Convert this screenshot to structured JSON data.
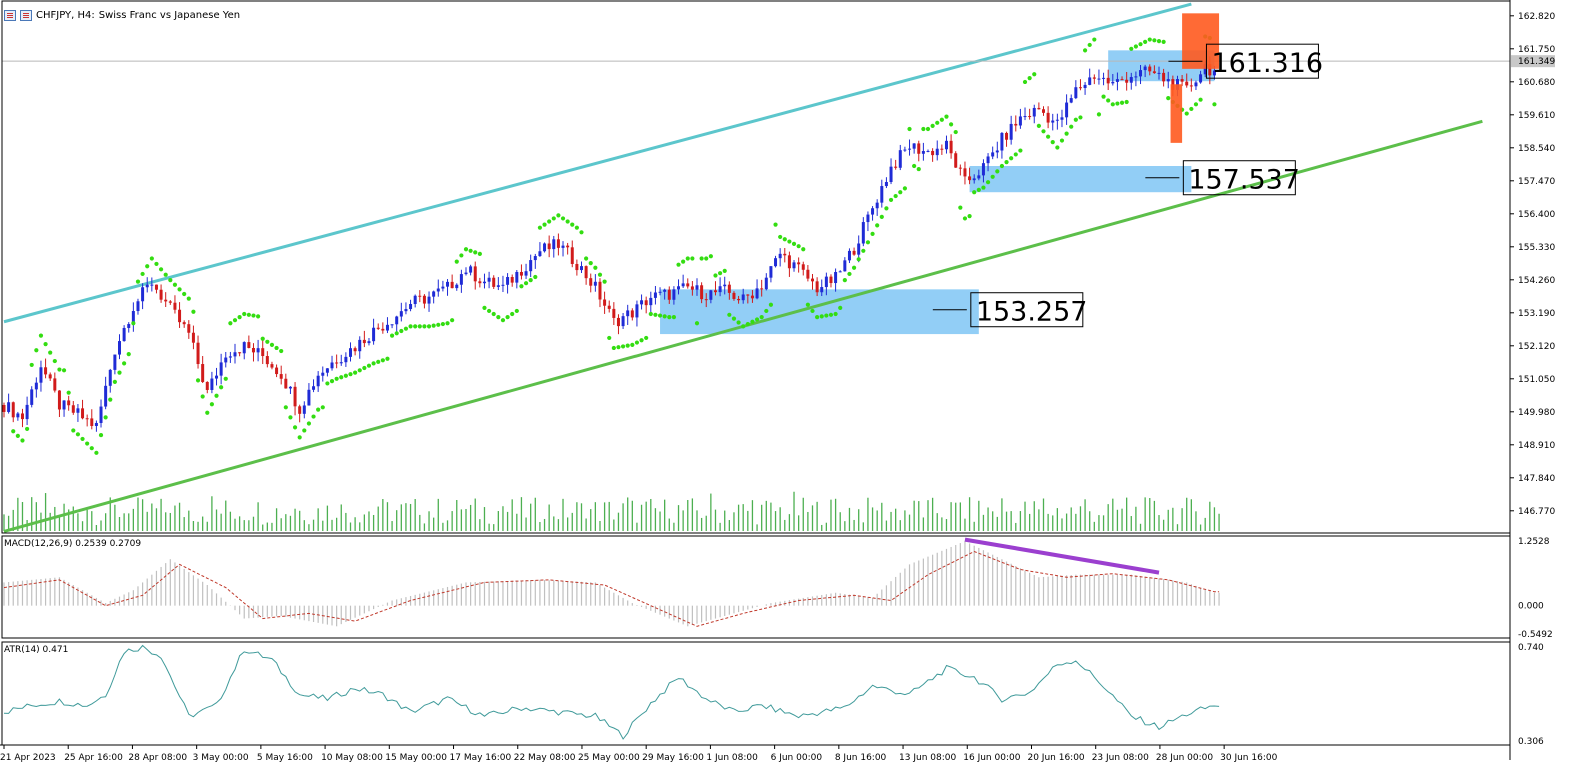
{
  "title_bar": {
    "symbol_text": "CHFJPY, H4:",
    "description": "Swiss Franc vs Japanese Yen",
    "icons": [
      "chart-window-icon",
      "chart-properties-icon"
    ]
  },
  "chart_data": [
    {
      "type": "candlestick",
      "symbol": "CHFJPY",
      "timeframe": "H4",
      "title": "CHFJPY, H4:  Swiss Franc vs Japanese Yen",
      "y_ticks": [
        162.82,
        161.75,
        160.68,
        159.61,
        158.54,
        157.47,
        156.4,
        155.33,
        154.26,
        153.19,
        152.12,
        151.05,
        149.98,
        148.91,
        147.84,
        146.77
      ],
      "y_tick_labels": [
        "162.820",
        "161.750",
        "160.680",
        "159.610",
        "158.540",
        "157.470",
        "156.400",
        "155.330",
        "154.260",
        "153.190",
        "152.120",
        "151.050",
        "149.980",
        "148.910",
        "147.840",
        "146.770"
      ],
      "ylim": [
        146.05,
        163.3
      ],
      "current_price_label": "161.349",
      "current_price": 161.349,
      "x_labels": [
        "21 Apr 2023",
        "25 Apr 16:00",
        "28 Apr 08:00",
        "3 May 00:00",
        "5 May 16:00",
        "10 May 08:00",
        "15 May 00:00",
        "17 May 16:00",
        "22 May 08:00",
        "25 May 00:00",
        "29 May 16:00",
        "1 Jun 08:00",
        "6 Jun 00:00",
        "8 Jun 16:00",
        "13 Jun 08:00",
        "16 Jun 00:00",
        "20 Jun 16:00",
        "23 Jun 08:00",
        "28 Jun 00:00",
        "30 Jun 16:00"
      ],
      "close_path": [
        [
          0,
          150.2
        ],
        [
          4,
          149.8
        ],
        [
          8,
          151.5
        ],
        [
          12,
          150.2
        ],
        [
          16,
          149.9
        ],
        [
          20,
          149.5
        ],
        [
          24,
          152.0
        ],
        [
          28,
          153.4
        ],
        [
          32,
          154.2
        ],
        [
          36,
          153.3
        ],
        [
          40,
          152.5
        ],
        [
          44,
          150.6
        ],
        [
          48,
          151.9
        ],
        [
          52,
          152.1
        ],
        [
          56,
          151.8
        ],
        [
          60,
          151.2
        ],
        [
          64,
          150.1
        ],
        [
          68,
          151.2
        ],
        [
          72,
          151.7
        ],
        [
          76,
          152.1
        ],
        [
          80,
          152.6
        ],
        [
          84,
          153.0
        ],
        [
          88,
          153.5
        ],
        [
          92,
          153.7
        ],
        [
          96,
          154.0
        ],
        [
          100,
          154.6
        ],
        [
          104,
          154.2
        ],
        [
          108,
          154.0
        ],
        [
          112,
          154.6
        ],
        [
          116,
          155.2
        ],
        [
          120,
          155.4
        ],
        [
          124,
          154.8
        ],
        [
          128,
          154.0
        ],
        [
          132,
          152.9
        ],
        [
          136,
          153.2
        ],
        [
          140,
          153.7
        ],
        [
          144,
          153.8
        ],
        [
          148,
          154.0
        ],
        [
          152,
          153.8
        ],
        [
          156,
          153.9
        ],
        [
          160,
          153.6
        ],
        [
          164,
          154.1
        ],
        [
          168,
          155.1
        ],
        [
          172,
          154.6
        ],
        [
          176,
          154.0
        ],
        [
          180,
          154.3
        ],
        [
          184,
          155.3
        ],
        [
          188,
          156.6
        ],
        [
          192,
          157.9
        ],
        [
          196,
          158.6
        ],
        [
          200,
          158.4
        ],
        [
          204,
          158.6
        ],
        [
          208,
          157.4
        ],
        [
          212,
          157.9
        ],
        [
          216,
          158.8
        ],
        [
          220,
          159.5
        ],
        [
          224,
          159.8
        ],
        [
          228,
          159.3
        ],
        [
          232,
          160.4
        ],
        [
          236,
          160.9
        ],
        [
          240,
          160.6
        ],
        [
          244,
          160.9
        ],
        [
          248,
          161.0
        ],
        [
          252,
          160.7
        ],
        [
          256,
          160.4
        ],
        [
          260,
          161.2
        ],
        [
          262,
          161.0
        ]
      ],
      "bars_total": 265,
      "channel_lines": [
        {
          "name": "upper-channel",
          "color": "#5cc6cc",
          "points": [
            [
              0,
              152.9
            ],
            [
              257,
              163.2
            ]
          ]
        },
        {
          "name": "lower-channel",
          "color": "#5cbf4a",
          "points": [
            [
              0,
              146.1
            ],
            [
              320,
              159.4
            ]
          ]
        }
      ],
      "zones": [
        {
          "label": "153.257",
          "value": 153.257,
          "x_range": [
            142,
            211
          ],
          "y_range": [
            152.5,
            153.95
          ],
          "color": "#8ccbf5"
        },
        {
          "label": "157.537",
          "value": 157.537,
          "x_range": [
            209,
            257
          ],
          "y_range": [
            157.1,
            157.95
          ],
          "color": "#8ccbf5"
        },
        {
          "label": "161.316",
          "value": 161.316,
          "x_range": [
            239,
            262
          ],
          "y_range": [
            160.7,
            161.7
          ],
          "color": "#8ccbf5"
        }
      ],
      "orange_marks": [
        {
          "x_range": [
            255,
            263
          ],
          "y_range": [
            161.1,
            162.9
          ]
        },
        {
          "x_range": [
            252.5,
            255
          ],
          "y_range": [
            158.7,
            160.6
          ]
        }
      ],
      "indicator": "Parabolic SAR",
      "sar_color": "#33dd11",
      "volume_color": "#4caf50"
    },
    {
      "type": "histogram+line",
      "label": "MACD(12,26,9) 0.2539 0.2709",
      "y_tick_labels": [
        "1.2528",
        "0.000",
        "-0.5492"
      ],
      "ylim": [
        -0.5492,
        1.2528
      ],
      "macd_path": [
        [
          0,
          0.45
        ],
        [
          12,
          0.55
        ],
        [
          22,
          0.05
        ],
        [
          28,
          0.3
        ],
        [
          36,
          0.9
        ],
        [
          44,
          0.4
        ],
        [
          52,
          -0.25
        ],
        [
          60,
          -0.2
        ],
        [
          72,
          -0.4
        ],
        [
          84,
          0.1
        ],
        [
          100,
          0.45
        ],
        [
          116,
          0.5
        ],
        [
          128,
          0.45
        ],
        [
          136,
          0.05
        ],
        [
          148,
          -0.4
        ],
        [
          156,
          -0.2
        ],
        [
          166,
          0.05
        ],
        [
          180,
          0.25
        ],
        [
          188,
          0.15
        ],
        [
          196,
          0.8
        ],
        [
          208,
          1.25
        ],
        [
          216,
          0.9
        ],
        [
          224,
          0.55
        ],
        [
          232,
          0.6
        ],
        [
          244,
          0.6
        ],
        [
          256,
          0.45
        ],
        [
          262,
          0.25
        ]
      ],
      "signal_path": [
        [
          0,
          0.35
        ],
        [
          12,
          0.5
        ],
        [
          22,
          0.0
        ],
        [
          30,
          0.2
        ],
        [
          38,
          0.8
        ],
        [
          48,
          0.35
        ],
        [
          56,
          -0.25
        ],
        [
          66,
          -0.15
        ],
        [
          76,
          -0.3
        ],
        [
          88,
          0.1
        ],
        [
          104,
          0.45
        ],
        [
          118,
          0.5
        ],
        [
          130,
          0.4
        ],
        [
          140,
          0.0
        ],
        [
          150,
          -0.4
        ],
        [
          160,
          -0.15
        ],
        [
          172,
          0.1
        ],
        [
          184,
          0.2
        ],
        [
          192,
          0.1
        ],
        [
          200,
          0.6
        ],
        [
          210,
          1.05
        ],
        [
          220,
          0.7
        ],
        [
          230,
          0.55
        ],
        [
          240,
          0.62
        ],
        [
          252,
          0.5
        ],
        [
          262,
          0.27
        ]
      ],
      "divergence_line": {
        "color": "#9b3fcf",
        "points": [
          [
            208,
            1.28
          ],
          [
            250,
            0.64
          ]
        ]
      }
    },
    {
      "type": "line",
      "label": "ATR(14) 0.471",
      "y_tick_labels": [
        "0.740",
        "0.306"
      ],
      "ylim": [
        0.306,
        0.74
      ],
      "line_color": "#3f9a9a",
      "path": [
        [
          0,
          0.44
        ],
        [
          6,
          0.47
        ],
        [
          12,
          0.49
        ],
        [
          18,
          0.47
        ],
        [
          22,
          0.52
        ],
        [
          26,
          0.72
        ],
        [
          30,
          0.74
        ],
        [
          34,
          0.7
        ],
        [
          40,
          0.42
        ],
        [
          46,
          0.47
        ],
        [
          52,
          0.73
        ],
        [
          58,
          0.68
        ],
        [
          64,
          0.52
        ],
        [
          70,
          0.5
        ],
        [
          76,
          0.55
        ],
        [
          82,
          0.52
        ],
        [
          88,
          0.44
        ],
        [
          96,
          0.5
        ],
        [
          104,
          0.42
        ],
        [
          112,
          0.46
        ],
        [
          120,
          0.44
        ],
        [
          128,
          0.42
        ],
        [
          134,
          0.33
        ],
        [
          140,
          0.48
        ],
        [
          146,
          0.6
        ],
        [
          152,
          0.5
        ],
        [
          158,
          0.44
        ],
        [
          164,
          0.47
        ],
        [
          172,
          0.42
        ],
        [
          182,
          0.46
        ],
        [
          188,
          0.56
        ],
        [
          196,
          0.52
        ],
        [
          204,
          0.64
        ],
        [
          210,
          0.6
        ],
        [
          216,
          0.5
        ],
        [
          222,
          0.53
        ],
        [
          228,
          0.66
        ],
        [
          232,
          0.68
        ],
        [
          238,
          0.56
        ],
        [
          244,
          0.42
        ],
        [
          250,
          0.37
        ],
        [
          256,
          0.43
        ],
        [
          262,
          0.47
        ]
      ]
    }
  ]
}
